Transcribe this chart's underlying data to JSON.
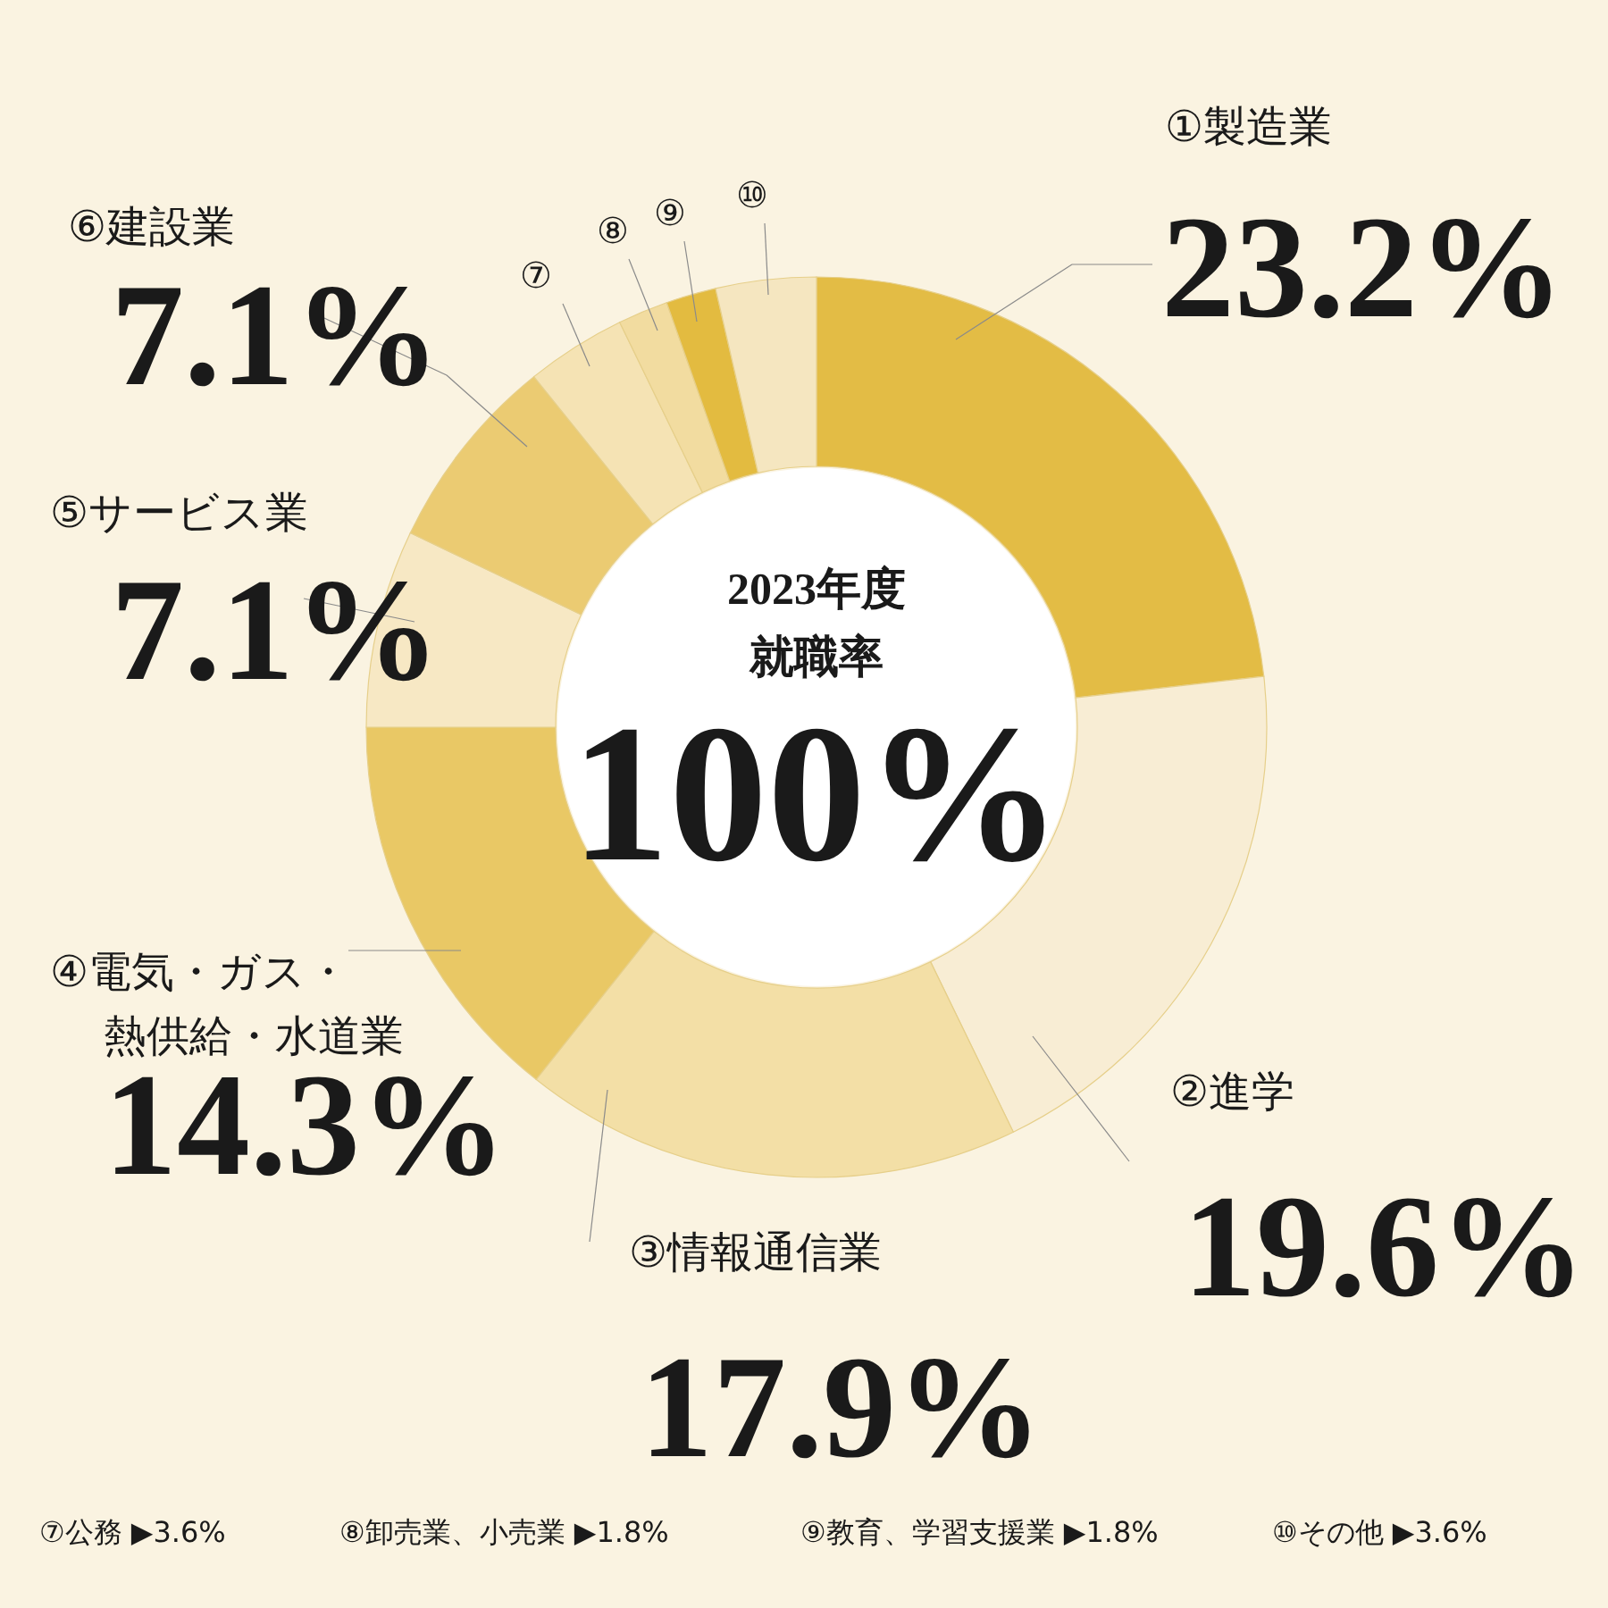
{
  "chart_data": {
    "type": "donut",
    "title": "2023年度",
    "subtitle": "就職率",
    "annotations": [
      "100%",
      "⑦公務 ▶3.6%",
      "⑧卸売業、小売業 ▶1.8%",
      "⑨教育、学習支援業 ▶1.8%",
      "⑩その他 ▶3.6%"
    ],
    "categories": [
      "①製造業",
      "②進学",
      "③情報通信業",
      "④電気・ガス・熱供給・水道業",
      "⑤サービス業",
      "⑥建設業",
      "⑦",
      "⑧",
      "⑨",
      "⑩"
    ],
    "values": [
      23.2,
      19.6,
      17.9,
      14.3,
      7.1,
      7.1,
      3.6,
      1.8,
      1.8,
      3.6
    ],
    "value_labels": [
      "23.2%",
      "19.6%",
      "17.9%",
      "14.3%",
      "7.1%",
      "7.1%",
      null,
      null,
      null,
      null
    ],
    "colors": [
      "#e3bc45",
      "#f8edd4",
      "#f3dfa6",
      "#e9c865",
      "#f7e8c4",
      "#ebcb72",
      "#f5e3b4",
      "#f2dca0",
      "#e3bb40",
      "#f5e6c0"
    ]
  }
}
